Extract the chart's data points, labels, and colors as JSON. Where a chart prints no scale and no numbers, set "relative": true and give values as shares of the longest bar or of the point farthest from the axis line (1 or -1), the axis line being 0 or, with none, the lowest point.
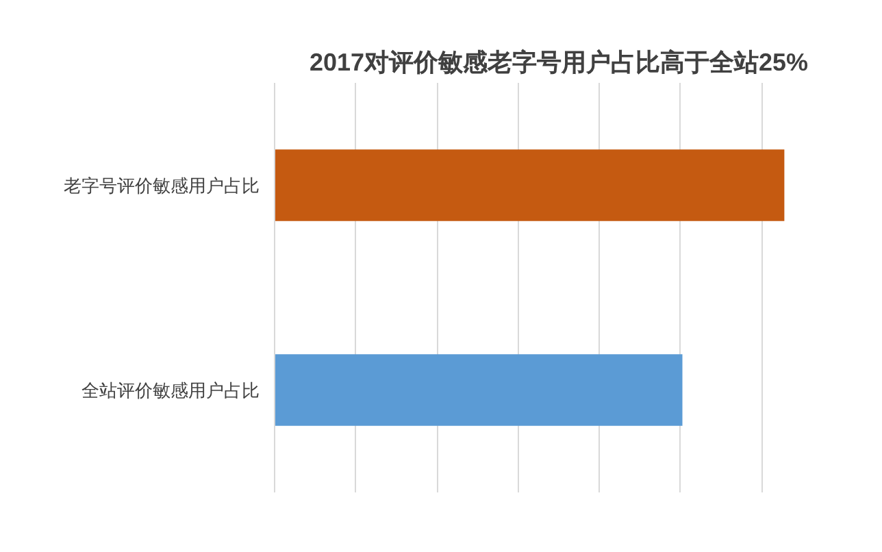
{
  "chart_data": {
    "type": "bar",
    "orientation": "horizontal",
    "relative": true,
    "title": "2017对评价敏感老字号用户占比高于全站25%",
    "categories": [
      "老字号评价敏感用户占比",
      "全站评价敏感用户占比"
    ],
    "values": [
      1,
      0.8
    ],
    "colors": [
      "#c55a11",
      "#5b9bd5"
    ],
    "grid": "x"
  }
}
